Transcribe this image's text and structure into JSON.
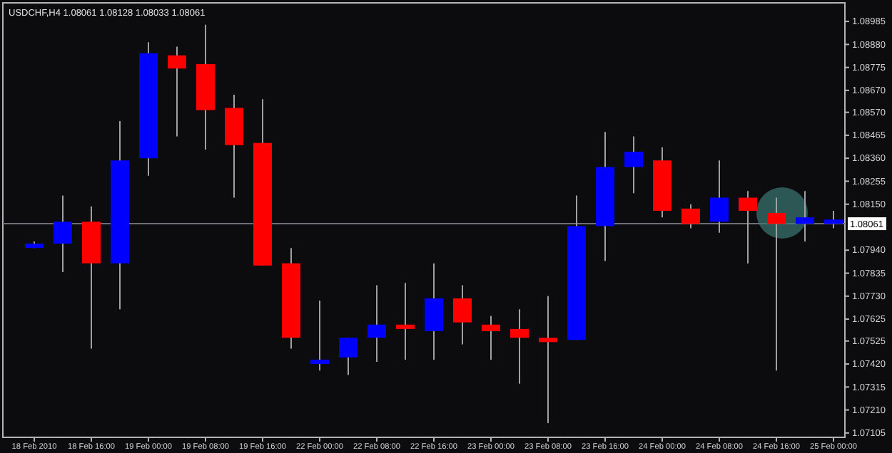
{
  "chart_data": {
    "type": "candlestick",
    "title": "USDCHF,H4  1.08061 1.08128 1.08033 1.08061",
    "categories": [
      "18 Feb 2010",
      null,
      "18 Feb 16:00",
      null,
      "19 Feb 00:00",
      null,
      "19 Feb 08:00",
      null,
      "19 Feb 16:00",
      null,
      "22 Feb 00:00",
      null,
      "22 Feb 08:00",
      null,
      "22 Feb 16:00",
      null,
      "23 Feb 00:00",
      null,
      "23 Feb 08:00",
      null,
      "23 Feb 16:00",
      null,
      "24 Feb 00:00",
      null,
      "24 Feb 08:00",
      null,
      "24 Feb 16:00",
      null,
      "25 Feb 00:00"
    ],
    "ohlc": [
      [
        1.0795,
        1.0798,
        1.0795,
        1.0797
      ],
      [
        1.0797,
        1.0819,
        1.0784,
        1.0807
      ],
      [
        1.0807,
        1.0814,
        1.0749,
        1.0788
      ],
      [
        1.0788,
        1.0853,
        1.0767,
        1.0835
      ],
      [
        1.0836,
        1.0889,
        1.0828,
        1.0884
      ],
      [
        1.0883,
        1.0887,
        1.0846,
        1.0877
      ],
      [
        1.0879,
        1.0897,
        1.084,
        1.0858
      ],
      [
        1.0859,
        1.0865,
        1.0818,
        1.0842
      ],
      [
        1.0843,
        1.0863,
        1.0787,
        1.0787
      ],
      [
        1.0788,
        1.0795,
        1.0749,
        1.0754
      ],
      [
        1.0742,
        1.0771,
        1.0739,
        1.0744
      ],
      [
        1.0745,
        1.0754,
        1.0737,
        1.0754
      ],
      [
        1.0754,
        1.0778,
        1.0743,
        1.076
      ],
      [
        1.076,
        1.0779,
        1.0744,
        1.0758
      ],
      [
        1.0757,
        1.0788,
        1.0744,
        1.0772
      ],
      [
        1.0772,
        1.0778,
        1.0751,
        1.0761
      ],
      [
        1.076,
        1.0764,
        1.0744,
        1.0757
      ],
      [
        1.0758,
        1.0767,
        1.0733,
        1.0754
      ],
      [
        1.0754,
        1.0773,
        1.0715,
        1.0752
      ],
      [
        1.0753,
        1.0819,
        1.0753,
        1.0805
      ],
      [
        1.0805,
        1.0848,
        1.0789,
        1.0832
      ],
      [
        1.0832,
        1.0846,
        1.082,
        1.0839
      ],
      [
        1.0835,
        1.0841,
        1.0809,
        1.0812
      ],
      [
        1.0813,
        1.0815,
        1.0804,
        1.0806
      ],
      [
        1.0807,
        1.0835,
        1.0802,
        1.0818
      ],
      [
        1.0818,
        1.0821,
        1.0788,
        1.0812
      ],
      [
        1.0811,
        1.0818,
        1.0739,
        1.0806
      ],
      [
        1.0806,
        1.0821,
        1.0798,
        1.0809
      ],
      [
        1.0806,
        1.0812,
        1.0804,
        1.0808
      ]
    ],
    "colors": [
      "#0000ff",
      "#0000ff",
      "#ff0000",
      "#0000ff",
      "#0000ff",
      "#ff0000",
      "#ff0000",
      "#ff0000",
      "#ff0000",
      "#ff0000",
      "#0000ff",
      "#0000ff",
      "#0000ff",
      "#ff0000",
      "#0000ff",
      "#ff0000",
      "#ff0000",
      "#ff0000",
      "#ff0000",
      "#0000ff",
      "#0000ff",
      "#0000ff",
      "#ff0000",
      "#ff0000",
      "#0000ff",
      "#ff0000",
      "#ff0000",
      "#0000ff",
      "#0000ff"
    ],
    "ylim": [
      1.07085,
      1.0907
    ],
    "yticks": [
      {
        "value": 1.08985,
        "label": "1.08985"
      },
      {
        "value": 1.0888,
        "label": "1.08880"
      },
      {
        "value": 1.08775,
        "label": "1.08775"
      },
      {
        "value": 1.0867,
        "label": "1.08670"
      },
      {
        "value": 1.0857,
        "label": "1.08570"
      },
      {
        "value": 1.08465,
        "label": "1.08465"
      },
      {
        "value": 1.0836,
        "label": "1.08360"
      },
      {
        "value": 1.08255,
        "label": "1.08255"
      },
      {
        "value": 1.0815,
        "label": "1.08150"
      },
      {
        "value": 1.0794,
        "label": "1.07940"
      },
      {
        "value": 1.07835,
        "label": "1.07835"
      },
      {
        "value": 1.0773,
        "label": "1.07730"
      },
      {
        "value": 1.07625,
        "label": "1.07625"
      },
      {
        "value": 1.07525,
        "label": "1.07525"
      },
      {
        "value": 1.0742,
        "label": "1.07420"
      },
      {
        "value": 1.07315,
        "label": "1.07315"
      },
      {
        "value": 1.0721,
        "label": "1.07210"
      },
      {
        "value": 1.07105,
        "label": "1.07105"
      }
    ],
    "ref_lines": [
      {
        "axis": "y",
        "value": 1.08061,
        "label": "1.08061",
        "color": "#6e6e78"
      }
    ],
    "grid": false
  }
}
